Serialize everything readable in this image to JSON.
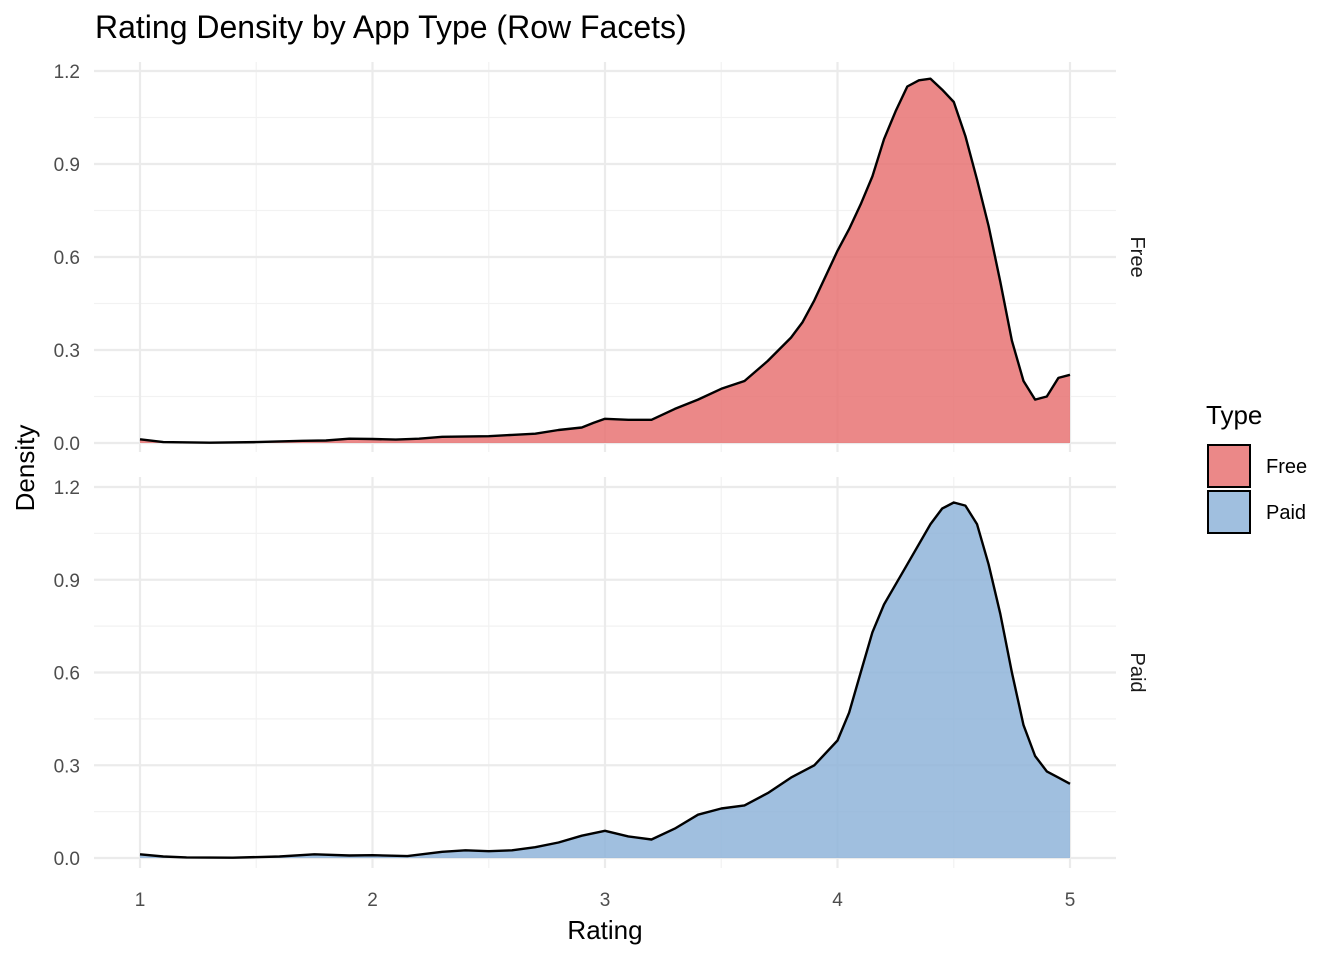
{
  "chart_data": {
    "type": "area",
    "title": "Rating Density by App Type (Row Facets)",
    "xlabel": "Rating",
    "ylabel": "Density",
    "xlim": [
      1,
      5
    ],
    "ylim": [
      0,
      1.2
    ],
    "x_ticks": [
      "1",
      "2",
      "3",
      "4",
      "5"
    ],
    "y_ticks": [
      "0.0",
      "0.3",
      "0.6",
      "0.9",
      "1.2"
    ],
    "grid": true,
    "legend": {
      "title": "Type",
      "placement": "right",
      "entries": [
        "Free",
        "Paid"
      ]
    },
    "series": [
      {
        "name": "Free",
        "facet": "Free",
        "color": "#e87373",
        "points": [
          [
            1.0,
            0.012
          ],
          [
            1.1,
            0.003
          ],
          [
            1.3,
            0.001
          ],
          [
            1.5,
            0.003
          ],
          [
            1.7,
            0.007
          ],
          [
            1.8,
            0.008
          ],
          [
            1.9,
            0.014
          ],
          [
            2.0,
            0.013
          ],
          [
            2.1,
            0.011
          ],
          [
            2.2,
            0.014
          ],
          [
            2.3,
            0.02
          ],
          [
            2.5,
            0.022
          ],
          [
            2.6,
            0.026
          ],
          [
            2.7,
            0.03
          ],
          [
            2.8,
            0.042
          ],
          [
            2.9,
            0.05
          ],
          [
            2.95,
            0.065
          ],
          [
            3.0,
            0.078
          ],
          [
            3.1,
            0.075
          ],
          [
            3.2,
            0.075
          ],
          [
            3.3,
            0.11
          ],
          [
            3.4,
            0.14
          ],
          [
            3.5,
            0.175
          ],
          [
            3.6,
            0.2
          ],
          [
            3.7,
            0.265
          ],
          [
            3.8,
            0.34
          ],
          [
            3.85,
            0.39
          ],
          [
            3.9,
            0.46
          ],
          [
            3.95,
            0.54
          ],
          [
            4.0,
            0.62
          ],
          [
            4.05,
            0.69
          ],
          [
            4.1,
            0.77
          ],
          [
            4.15,
            0.86
          ],
          [
            4.2,
            0.98
          ],
          [
            4.25,
            1.07
          ],
          [
            4.3,
            1.15
          ],
          [
            4.35,
            1.17
          ],
          [
            4.4,
            1.175
          ],
          [
            4.45,
            1.14
          ],
          [
            4.5,
            1.1
          ],
          [
            4.55,
            0.99
          ],
          [
            4.6,
            0.85
          ],
          [
            4.65,
            0.7
          ],
          [
            4.7,
            0.52
          ],
          [
            4.75,
            0.33
          ],
          [
            4.8,
            0.2
          ],
          [
            4.85,
            0.14
          ],
          [
            4.9,
            0.15
          ],
          [
            4.95,
            0.21
          ],
          [
            5.0,
            0.22
          ]
        ]
      },
      {
        "name": "Paid",
        "facet": "Paid",
        "color": "#8fb4d9",
        "points": [
          [
            1.0,
            0.012
          ],
          [
            1.1,
            0.005
          ],
          [
            1.2,
            0.002
          ],
          [
            1.4,
            0.001
          ],
          [
            1.6,
            0.005
          ],
          [
            1.75,
            0.012
          ],
          [
            1.9,
            0.008
          ],
          [
            2.0,
            0.009
          ],
          [
            2.15,
            0.006
          ],
          [
            2.3,
            0.02
          ],
          [
            2.4,
            0.025
          ],
          [
            2.5,
            0.022
          ],
          [
            2.6,
            0.025
          ],
          [
            2.7,
            0.035
          ],
          [
            2.8,
            0.05
          ],
          [
            2.9,
            0.072
          ],
          [
            3.0,
            0.088
          ],
          [
            3.1,
            0.07
          ],
          [
            3.2,
            0.06
          ],
          [
            3.3,
            0.095
          ],
          [
            3.4,
            0.14
          ],
          [
            3.5,
            0.16
          ],
          [
            3.6,
            0.17
          ],
          [
            3.7,
            0.21
          ],
          [
            3.8,
            0.26
          ],
          [
            3.9,
            0.3
          ],
          [
            4.0,
            0.38
          ],
          [
            4.05,
            0.47
          ],
          [
            4.1,
            0.6
          ],
          [
            4.15,
            0.73
          ],
          [
            4.2,
            0.82
          ],
          [
            4.3,
            0.95
          ],
          [
            4.4,
            1.08
          ],
          [
            4.45,
            1.13
          ],
          [
            4.5,
            1.15
          ],
          [
            4.55,
            1.14
          ],
          [
            4.6,
            1.08
          ],
          [
            4.65,
            0.95
          ],
          [
            4.7,
            0.79
          ],
          [
            4.75,
            0.6
          ],
          [
            4.8,
            0.43
          ],
          [
            4.85,
            0.33
          ],
          [
            4.9,
            0.28
          ],
          [
            4.95,
            0.26
          ],
          [
            5.0,
            0.24
          ]
        ]
      }
    ]
  }
}
